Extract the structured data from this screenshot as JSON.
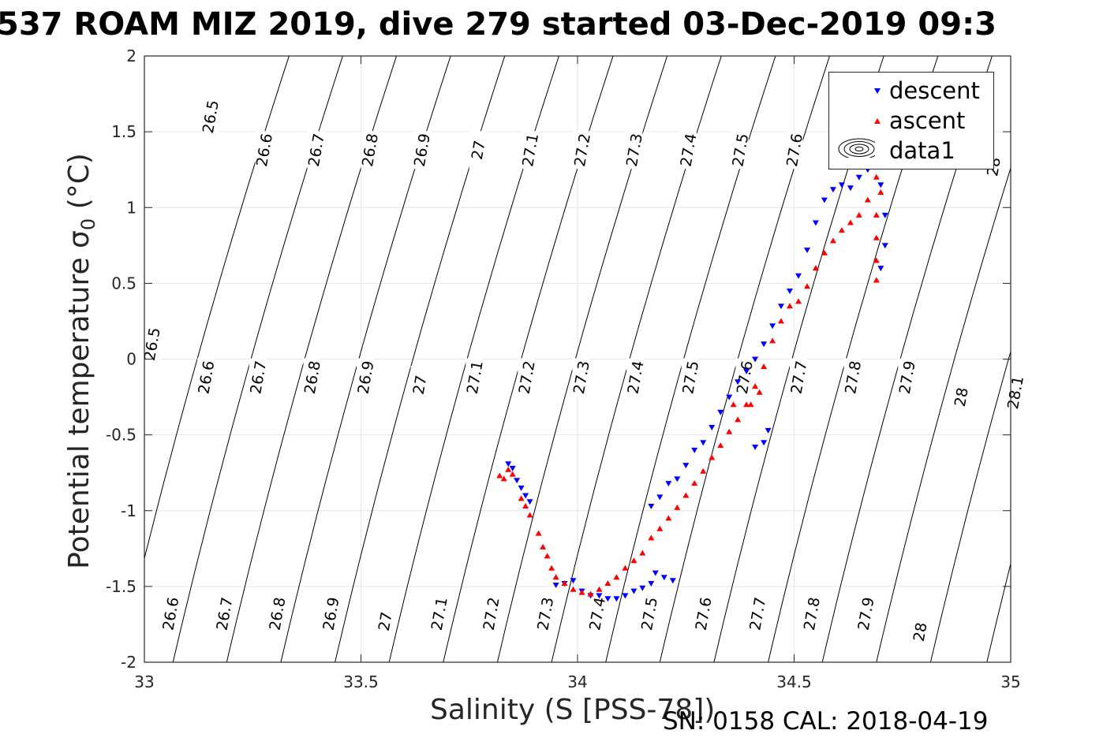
{
  "title": "537 ROAM MIZ 2019, dive 279 started 03-Dec-2019 09:3",
  "footer": "SN: 0158  CAL: 2018-04-19",
  "chart_data": {
    "type": "scatter",
    "title": "537 ROAM MIZ 2019, dive 279 started 03-Dec-2019 09:3",
    "xlabel": "Salinity (S [PSS-78])",
    "ylabel_main": "Potential temperature ",
    "ylabel_sigma": "σ",
    "ylabel_sub": "0",
    "ylabel_unit": " (°C)",
    "xlim": [
      33,
      35
    ],
    "ylim": [
      -2,
      2
    ],
    "xticks": [
      "33",
      "33.5",
      "34",
      "34.5",
      "35"
    ],
    "yticks": [
      "-2",
      "-1.5",
      "-1",
      "-0.5",
      "0",
      "0.5",
      "1",
      "1.5",
      "2"
    ],
    "grid": true,
    "legend": {
      "position": "top-right",
      "entries": [
        "descent",
        "ascent",
        "data1"
      ]
    },
    "colors": {
      "descent": "#0000ff",
      "ascent": "#ff0000",
      "contour": "#000000"
    },
    "contours": [
      {
        "label": "26.5",
        "a": 32.942,
        "b": 0.082,
        "label_points": [
          [
            33.152,
            1.6
          ],
          [
            33.017,
            0.1
          ]
        ]
      },
      {
        "label": "26.6",
        "a": 33.066,
        "b": 0.082,
        "label_points": [
          [
            33.276,
            1.38
          ],
          [
            33.142,
            -0.12
          ],
          [
            33.06,
            -1.68
          ]
        ]
      },
      {
        "label": "26.7",
        "a": 33.19,
        "b": 0.082,
        "label_points": [
          [
            33.396,
            1.38
          ],
          [
            33.262,
            -0.12
          ],
          [
            33.184,
            -1.68
          ]
        ]
      },
      {
        "label": "26.8",
        "a": 33.315,
        "b": 0.082,
        "label_points": [
          [
            33.52,
            1.38
          ],
          [
            33.387,
            -0.12
          ],
          [
            33.306,
            -1.68
          ]
        ]
      },
      {
        "label": "26.9",
        "a": 33.44,
        "b": 0.082,
        "label_points": [
          [
            33.64,
            1.38
          ],
          [
            33.51,
            -0.12
          ],
          [
            33.43,
            -1.68
          ]
        ]
      },
      {
        "label": "27",
        "a": 33.565,
        "b": 0.082,
        "label_points": [
          [
            33.77,
            1.38
          ],
          [
            33.635,
            -0.17
          ],
          [
            33.555,
            -1.73
          ]
        ]
      },
      {
        "label": "27.1",
        "a": 33.69,
        "b": 0.082,
        "label_points": [
          [
            33.89,
            1.38
          ],
          [
            33.762,
            -0.12
          ],
          [
            33.68,
            -1.68
          ]
        ]
      },
      {
        "label": "27.2",
        "a": 33.815,
        "b": 0.082,
        "label_points": [
          [
            34.01,
            1.38
          ],
          [
            33.882,
            -0.12
          ],
          [
            33.8,
            -1.68
          ]
        ]
      },
      {
        "label": "27.3",
        "a": 33.94,
        "b": 0.082,
        "label_points": [
          [
            34.13,
            1.38
          ],
          [
            34.008,
            -0.12
          ],
          [
            33.925,
            -1.68
          ]
        ]
      },
      {
        "label": "27.4",
        "a": 34.065,
        "b": 0.082,
        "label_points": [
          [
            34.255,
            1.38
          ],
          [
            34.133,
            -0.12
          ],
          [
            34.045,
            -1.68
          ]
        ]
      },
      {
        "label": "27.5",
        "a": 34.19,
        "b": 0.082,
        "label_points": [
          [
            34.375,
            1.38
          ],
          [
            34.26,
            -0.12
          ],
          [
            34.165,
            -1.68
          ]
        ]
      },
      {
        "label": "27.6",
        "a": 34.315,
        "b": 0.082,
        "label_points": [
          [
            34.5,
            1.38
          ],
          [
            34.385,
            -0.12
          ],
          [
            34.29,
            -1.68
          ]
        ]
      },
      {
        "label": "27.7",
        "a": 34.44,
        "b": 0.082,
        "label_points": [
          [
            34.51,
            -0.12
          ],
          [
            34.415,
            -1.68
          ]
        ]
      },
      {
        "label": "27.8",
        "a": 34.565,
        "b": 0.082,
        "label_points": [
          [
            34.635,
            -0.12
          ],
          [
            34.54,
            -1.68
          ]
        ]
      },
      {
        "label": "27.9",
        "a": 34.69,
        "b": 0.082,
        "label_points": [
          [
            34.76,
            -0.12
          ],
          [
            34.665,
            -1.68
          ]
        ]
      },
      {
        "label": "28",
        "a": 34.815,
        "b": 0.082,
        "label_points": [
          [
            34.96,
            1.27
          ],
          [
            34.885,
            -0.25
          ],
          [
            34.79,
            -1.8
          ]
        ]
      },
      {
        "label": "28.1",
        "a": 34.945,
        "b": 0.082,
        "label_points": [
          [
            35.01,
            -0.22
          ]
        ]
      }
    ],
    "series": [
      {
        "name": "descent",
        "marker": "triangle-down",
        "points": [
          [
            33.84,
            -0.69
          ],
          [
            33.85,
            -0.72
          ],
          [
            33.86,
            -0.8
          ],
          [
            33.87,
            -0.85
          ],
          [
            33.88,
            -0.9
          ],
          [
            33.89,
            -0.94
          ],
          [
            33.95,
            -1.49
          ],
          [
            33.97,
            -1.48
          ],
          [
            33.99,
            -1.46
          ],
          [
            34.01,
            -1.53
          ],
          [
            34.03,
            -1.56
          ],
          [
            34.05,
            -1.56
          ],
          [
            34.07,
            -1.58
          ],
          [
            34.09,
            -1.58
          ],
          [
            34.11,
            -1.56
          ],
          [
            34.13,
            -1.53
          ],
          [
            34.15,
            -1.51
          ],
          [
            34.17,
            -1.48
          ],
          [
            34.18,
            -1.41
          ],
          [
            34.2,
            -1.44
          ],
          [
            34.22,
            -1.46
          ],
          [
            34.17,
            -0.97
          ],
          [
            34.19,
            -0.91
          ],
          [
            34.21,
            -0.82
          ],
          [
            34.23,
            -0.79
          ],
          [
            34.25,
            -0.7
          ],
          [
            34.27,
            -0.6
          ],
          [
            34.29,
            -0.55
          ],
          [
            34.31,
            -0.45
          ],
          [
            34.33,
            -0.35
          ],
          [
            34.35,
            -0.25
          ],
          [
            34.37,
            -0.15
          ],
          [
            34.39,
            -0.08
          ],
          [
            34.41,
            0.0
          ],
          [
            34.43,
            0.1
          ],
          [
            34.45,
            0.22
          ],
          [
            34.47,
            0.35
          ],
          [
            34.49,
            0.45
          ],
          [
            34.51,
            0.55
          ],
          [
            34.53,
            0.72
          ],
          [
            34.55,
            0.9
          ],
          [
            34.57,
            1.05
          ],
          [
            34.59,
            1.12
          ],
          [
            34.61,
            1.15
          ],
          [
            34.63,
            1.13
          ],
          [
            34.65,
            1.2
          ],
          [
            34.67,
            1.25
          ],
          [
            34.69,
            1.3
          ],
          [
            34.7,
            1.15
          ],
          [
            34.71,
            0.95
          ],
          [
            34.71,
            0.75
          ],
          [
            34.7,
            0.6
          ],
          [
            34.43,
            -0.55
          ],
          [
            34.44,
            -0.47
          ],
          [
            34.41,
            -0.58
          ]
        ]
      },
      {
        "name": "ascent",
        "marker": "triangle-up",
        "points": [
          [
            33.82,
            -0.77
          ],
          [
            33.83,
            -0.79
          ],
          [
            33.84,
            -0.73
          ],
          [
            33.85,
            -0.76
          ],
          [
            33.87,
            -0.92
          ],
          [
            33.88,
            -0.97
          ],
          [
            33.89,
            -1.03
          ],
          [
            33.91,
            -1.15
          ],
          [
            33.92,
            -1.24
          ],
          [
            33.93,
            -1.3
          ],
          [
            33.94,
            -1.38
          ],
          [
            33.95,
            -1.44
          ],
          [
            33.97,
            -1.48
          ],
          [
            33.99,
            -1.52
          ],
          [
            34.01,
            -1.54
          ],
          [
            34.03,
            -1.55
          ],
          [
            34.05,
            -1.52
          ],
          [
            34.07,
            -1.48
          ],
          [
            34.09,
            -1.44
          ],
          [
            34.11,
            -1.38
          ],
          [
            34.13,
            -1.33
          ],
          [
            34.15,
            -1.28
          ],
          [
            34.17,
            -1.18
          ],
          [
            34.19,
            -1.12
          ],
          [
            34.21,
            -1.05
          ],
          [
            34.23,
            -0.98
          ],
          [
            34.25,
            -0.9
          ],
          [
            34.27,
            -0.82
          ],
          [
            34.29,
            -0.74
          ],
          [
            34.31,
            -0.65
          ],
          [
            34.33,
            -0.57
          ],
          [
            34.35,
            -0.48
          ],
          [
            34.37,
            -0.4
          ],
          [
            34.39,
            -0.3
          ],
          [
            34.41,
            -0.18
          ],
          [
            34.43,
            -0.05
          ],
          [
            34.45,
            0.12
          ],
          [
            34.47,
            0.25
          ],
          [
            34.49,
            0.35
          ],
          [
            34.51,
            0.38
          ],
          [
            34.53,
            0.48
          ],
          [
            34.55,
            0.6
          ],
          [
            34.57,
            0.7
          ],
          [
            34.59,
            0.78
          ],
          [
            34.61,
            0.85
          ],
          [
            34.63,
            0.9
          ],
          [
            34.65,
            0.95
          ],
          [
            34.67,
            1.05
          ],
          [
            34.69,
            1.2
          ],
          [
            34.7,
            1.1
          ],
          [
            34.69,
            0.95
          ],
          [
            34.69,
            0.8
          ],
          [
            34.69,
            0.65
          ],
          [
            34.69,
            0.52
          ],
          [
            34.42,
            -0.22
          ],
          [
            34.4,
            -0.3
          ],
          [
            34.36,
            -0.3
          ]
        ]
      }
    ]
  }
}
